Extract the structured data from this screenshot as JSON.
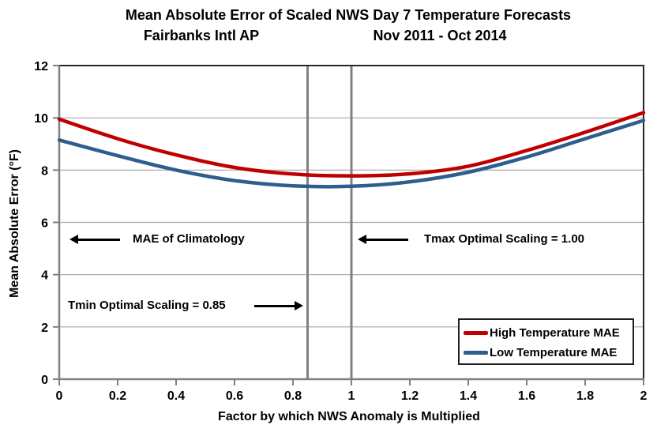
{
  "chart_data": {
    "type": "line",
    "title": "Mean Absolute Error of Scaled NWS Day 7 Temperature Forecasts",
    "subtitle_left": "Fairbanks Intl AP",
    "subtitle_right": "Nov 2011 - Oct 2014",
    "xlabel": "Factor by which NWS Anomaly is Multiplied",
    "ylabel": "Mean Absolute Error (°F)",
    "xlim": [
      0,
      2
    ],
    "ylim": [
      0,
      12
    ],
    "x_ticks": {
      "values": [
        0,
        0.2,
        0.4,
        0.6,
        0.8,
        1,
        1.2,
        1.4,
        1.6,
        1.8,
        2
      ],
      "labels": [
        "0",
        "0.2",
        "0.4",
        "0.6",
        "0.8",
        "1",
        "1.2",
        "1.4",
        "1.6",
        "1.8",
        "2"
      ]
    },
    "y_ticks": {
      "values": [
        0,
        2,
        4,
        6,
        8,
        10,
        12
      ],
      "labels": [
        "0",
        "2",
        "4",
        "6",
        "8",
        "10",
        "12"
      ]
    },
    "grid": "horizontal",
    "legend_position": "bottom-right",
    "x": [
      0,
      0.2,
      0.4,
      0.6,
      0.8,
      1.0,
      1.2,
      1.4,
      1.6,
      1.8,
      2.0
    ],
    "series": [
      {
        "name": "High Temperature MAE",
        "color": "#C00000",
        "values": [
          9.95,
          9.2,
          8.58,
          8.1,
          7.85,
          7.78,
          7.86,
          8.15,
          8.75,
          9.45,
          10.2
        ]
      },
      {
        "name": "Low Temperature MAE",
        "color": "#2E5E8E",
        "values": [
          9.15,
          8.55,
          8.0,
          7.6,
          7.4,
          7.38,
          7.55,
          7.92,
          8.5,
          9.2,
          9.9
        ]
      }
    ],
    "reference_lines": [
      {
        "x": 0.85
      },
      {
        "x": 1.0
      }
    ],
    "annotations": [
      {
        "text": "MAE of Climatology",
        "arrow": "left"
      },
      {
        "text": "Tmax Optimal Scaling = 1.00",
        "arrow": "left"
      },
      {
        "text": "Tmin Optimal Scaling = 0.85",
        "arrow": "right"
      }
    ],
    "colors": {
      "grid": "#A6A6A6",
      "axis": "#808080",
      "marker_line": "#808080",
      "border": "#262626",
      "text": "#000000"
    }
  }
}
